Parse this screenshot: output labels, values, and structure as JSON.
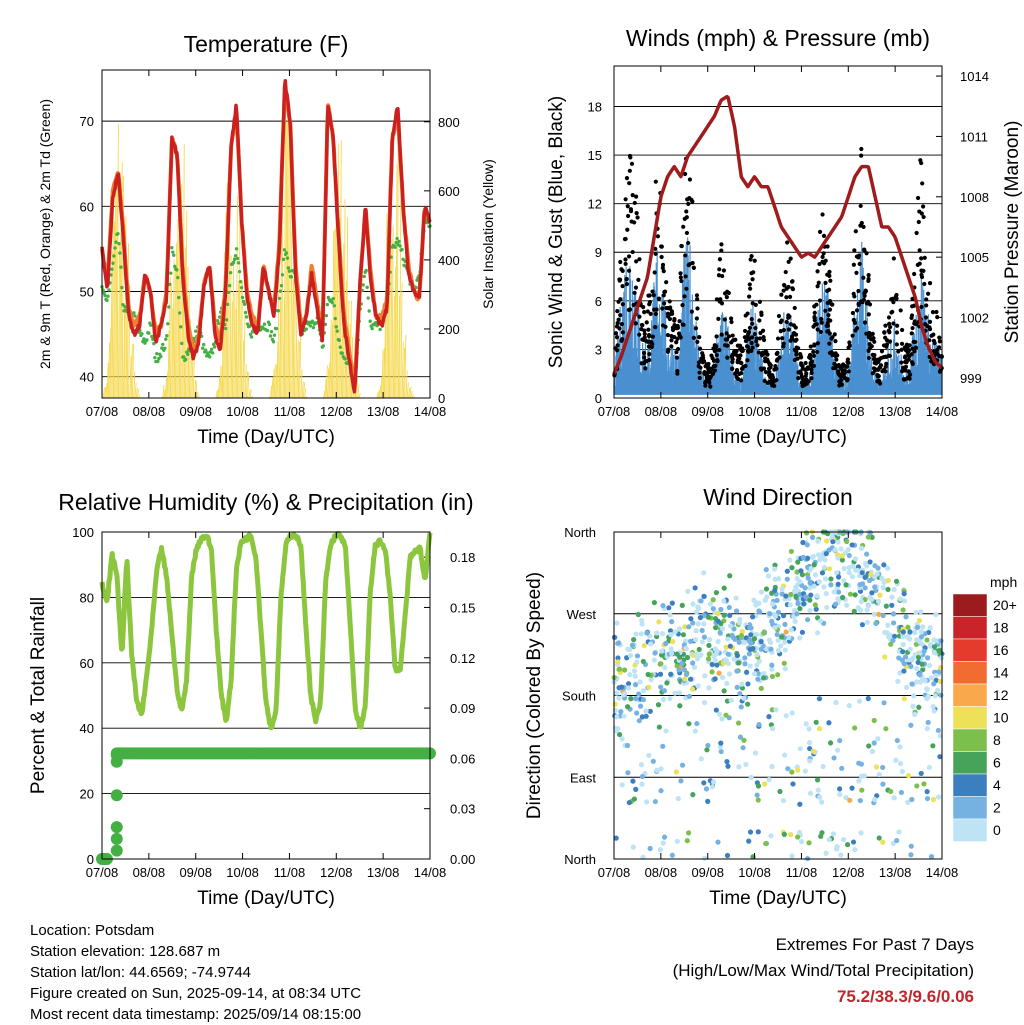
{
  "info": {
    "location": "Location: Potsdam",
    "elevation": "Station elevation: 128.687 m",
    "latlon": "Station lat/lon: 44.6569; -74.9744",
    "created": "Figure created on Sun, 2025-09-14, at 08:34 UTC",
    "recent": "Most recent data timestamp: 2025/09/14 08:15:00"
  },
  "extremes": {
    "line1": "Extremes For Past 7 Days",
    "line2": "(High/Low/Max Wind/Total Precipitation)",
    "values": "75.2/38.3/9.6/0.06"
  },
  "colors": {
    "temp_2m": "#cc2020",
    "temp_9m": "#f08030",
    "dewpoint": "#44b044",
    "insolation": "#f5d84a",
    "gust": "#000000",
    "wind": "#4a90d0",
    "pressure": "#a01c1c",
    "rh": "#8cc63f",
    "precip": "#44b044"
  },
  "chart_data": [
    {
      "type": "line",
      "title": "Temperature (F)",
      "xlabel": "Time (Day/UTC)",
      "ylabel": "2m & 9m T (Red, Orange) & 2m Td (Green)",
      "y2label": "Solar Insolation (Yellow)",
      "x_ticks": [
        "07/08",
        "08/08",
        "09/08",
        "10/08",
        "11/08",
        "12/08",
        "13/08",
        "14/08"
      ],
      "y_ticks": [
        40,
        50,
        60,
        70
      ],
      "y2_ticks": [
        0,
        200,
        400,
        600,
        800
      ],
      "ylim": [
        37.5,
        76
      ],
      "y2lim": [
        0,
        950
      ],
      "grid": true,
      "series": [
        {
          "values": [
            55,
            50,
            61,
            64,
            56,
            47,
            45,
            46,
            52,
            50,
            44,
            46,
            49,
            68,
            66,
            52,
            45,
            42,
            44,
            51,
            53,
            45,
            43,
            50,
            67,
            72,
            58,
            49,
            46,
            45,
            53,
            50,
            47,
            55,
            75,
            70,
            52,
            45,
            47,
            52,
            48,
            44,
            72,
            68,
            56,
            46,
            42,
            38,
            51,
            60,
            51,
            47,
            46,
            48,
            68,
            72,
            60,
            52,
            50,
            49,
            60,
            58
          ]
        },
        {
          "values": [
            55,
            51,
            62,
            64,
            57,
            48,
            46,
            47,
            52,
            50,
            45,
            46,
            50,
            68,
            66,
            53,
            46,
            43,
            45,
            51,
            53,
            46,
            44,
            51,
            67,
            71,
            58,
            50,
            47,
            46,
            53,
            50,
            48,
            56,
            74,
            70,
            53,
            46,
            47,
            53,
            49,
            45,
            72,
            68,
            57,
            47,
            43,
            39,
            51,
            60,
            52,
            47,
            47,
            49,
            68,
            71,
            60,
            53,
            50,
            49,
            60,
            58
          ]
        },
        {
          "values": [
            50,
            49,
            53,
            57,
            48,
            47,
            47,
            45,
            44,
            46,
            42,
            43,
            44,
            55,
            52,
            42,
            43,
            44,
            46,
            43,
            42,
            44,
            48,
            46,
            53,
            55,
            50,
            46,
            45,
            46,
            46,
            46,
            44,
            49,
            55,
            52,
            52,
            45,
            46,
            46,
            47,
            43,
            49,
            49,
            44,
            42,
            42,
            39,
            48,
            53,
            46,
            46,
            46,
            49,
            55,
            56,
            54,
            52,
            50,
            52,
            58,
            58
          ]
        }
      ],
      "insolation": [
        0,
        120,
        650,
        860,
        700,
        320,
        60,
        0,
        0,
        0,
        0,
        0,
        120,
        570,
        800,
        740,
        380,
        100,
        0,
        0,
        0,
        0,
        130,
        600,
        780,
        720,
        360,
        80,
        0,
        0,
        0,
        0,
        120,
        640,
        810,
        760,
        400,
        100,
        0,
        0,
        0,
        0,
        130,
        640,
        840,
        760,
        380,
        90,
        0,
        0,
        0,
        0,
        140,
        600,
        760,
        680,
        300,
        50,
        0,
        0,
        0,
        0
      ]
    },
    {
      "type": "line",
      "title": "Winds (mph) & Pressure (mb)",
      "xlabel": "Time (Day/UTC)",
      "ylabel": "Sonic Wind & Gust (Blue, Black)",
      "y2label": "Station Pressure (Maroon)",
      "x_ticks": [
        "07/08",
        "08/08",
        "09/08",
        "10/08",
        "11/08",
        "12/08",
        "13/08",
        "14/08"
      ],
      "y_ticks": [
        0,
        3,
        6,
        9,
        12,
        15,
        18
      ],
      "y2_ticks": [
        999,
        1002,
        1005,
        1008,
        1011,
        1014
      ],
      "ylim": [
        0,
        20.5
      ],
      "y2lim": [
        998,
        1014.5
      ],
      "grid": true,
      "series": [
        {
          "name": "gust",
          "values": [
            2,
            7,
            12,
            15,
            13,
            6,
            5,
            7,
            14,
            10,
            6,
            5,
            4,
            13,
            15,
            9,
            3,
            2,
            2,
            5,
            9,
            7,
            4,
            3,
            3,
            7,
            9,
            6,
            3,
            2,
            2,
            6,
            9,
            8,
            4,
            2,
            2,
            4,
            9,
            11,
            8,
            4,
            2,
            2,
            4,
            11,
            14,
            9,
            4,
            2,
            3,
            6,
            8,
            6,
            3,
            3,
            8,
            14,
            9,
            6,
            5,
            3
          ]
        },
        {
          "name": "wind",
          "values": [
            1,
            4,
            7,
            8,
            7,
            3,
            3,
            4,
            8,
            6,
            3,
            3,
            2,
            7,
            8,
            5,
            2,
            1,
            1,
            3,
            5,
            4,
            2,
            1,
            1,
            4,
            5,
            3,
            1,
            1,
            1,
            3,
            5,
            4,
            2,
            1,
            1,
            2,
            5,
            6,
            5,
            2,
            1,
            1,
            2,
            6,
            8,
            5,
            2,
            1,
            1,
            3,
            4,
            3,
            1,
            2,
            4,
            7,
            5,
            3,
            3,
            2
          ]
        }
      ],
      "pressure": [
        999.2,
        1000,
        1001,
        1002,
        1003,
        1004,
        1006,
        1008,
        1009,
        1009.5,
        1009,
        1010,
        1010.5,
        1011,
        1011.5,
        1012,
        1012.8,
        1013,
        1011.5,
        1009,
        1008.5,
        1009,
        1008.5,
        1008.5,
        1007.5,
        1006.5,
        1006,
        1005.5,
        1005,
        1005.2,
        1005,
        1005.5,
        1006,
        1006.5,
        1007,
        1008,
        1009,
        1009.5,
        1009.5,
        1008,
        1006.5,
        1006.5,
        1006,
        1005,
        1004,
        1003,
        1001.5,
        1000.5,
        999.8,
        999.5
      ]
    },
    {
      "type": "line",
      "title": "Relative Humidity (%) & Precipitation (in)",
      "xlabel": "Time (Day/UTC)",
      "ylabel": "Percent & Total Rainfall",
      "x_ticks": [
        "07/08",
        "08/08",
        "09/08",
        "10/08",
        "11/08",
        "12/08",
        "13/08",
        "14/08"
      ],
      "y_ticks": [
        0,
        20,
        40,
        60,
        80,
        100
      ],
      "y2_ticks": [
        "0.00",
        "0.03",
        "0.06",
        "0.09",
        "0.12",
        "0.15",
        "0.18"
      ],
      "ylim": [
        0,
        100
      ],
      "y2lim": [
        0,
        0.195
      ],
      "grid": true,
      "series": [
        {
          "name": "rh",
          "values": [
            84,
            78,
            93,
            87,
            62,
            92,
            62,
            48,
            44,
            56,
            70,
            88,
            95,
            86,
            70,
            53,
            45,
            54,
            86,
            95,
            98,
            99,
            95,
            70,
            50,
            42,
            55,
            88,
            97,
            98,
            99,
            92,
            70,
            48,
            40,
            45,
            80,
            96,
            99,
            99,
            96,
            72,
            50,
            42,
            48,
            85,
            96,
            99,
            99,
            95,
            70,
            45,
            40,
            47,
            82,
            96,
            97,
            95,
            80,
            58,
            58,
            74,
            92,
            94,
            95,
            85,
            100
          ]
        }
      ],
      "precip": [
        0,
        0,
        0,
        0,
        0,
        0.005,
        0.012,
        0.02,
        0.022,
        0.038,
        0.06,
        0.062,
        0.063,
        0.063,
        0.063,
        0.063,
        0.063,
        0.063,
        0.063,
        0.063
      ]
    },
    {
      "type": "scatter",
      "title": "Wind Direction",
      "xlabel": "Time (Day/UTC)",
      "ylabel": "Direction (Colored By Speed)",
      "x_ticks": [
        "07/08",
        "08/08",
        "09/08",
        "10/08",
        "11/08",
        "12/08",
        "13/08",
        "14/08"
      ],
      "y_ticks": [
        "North",
        "East",
        "South",
        "West",
        "North"
      ],
      "grid": true,
      "legend_title": "mph",
      "legend_labels": [
        "20+",
        "18",
        "16",
        "14",
        "12",
        "10",
        "8",
        "6",
        "4",
        "2",
        "0"
      ],
      "legend_colors": [
        "#9c1b1f",
        "#c9242a",
        "#e43b2c",
        "#f26c32",
        "#f9a94b",
        "#ede157",
        "#7cbf4d",
        "#45a35a",
        "#3c7fc0",
        "#76b2e1",
        "#bde3f5"
      ]
    }
  ]
}
